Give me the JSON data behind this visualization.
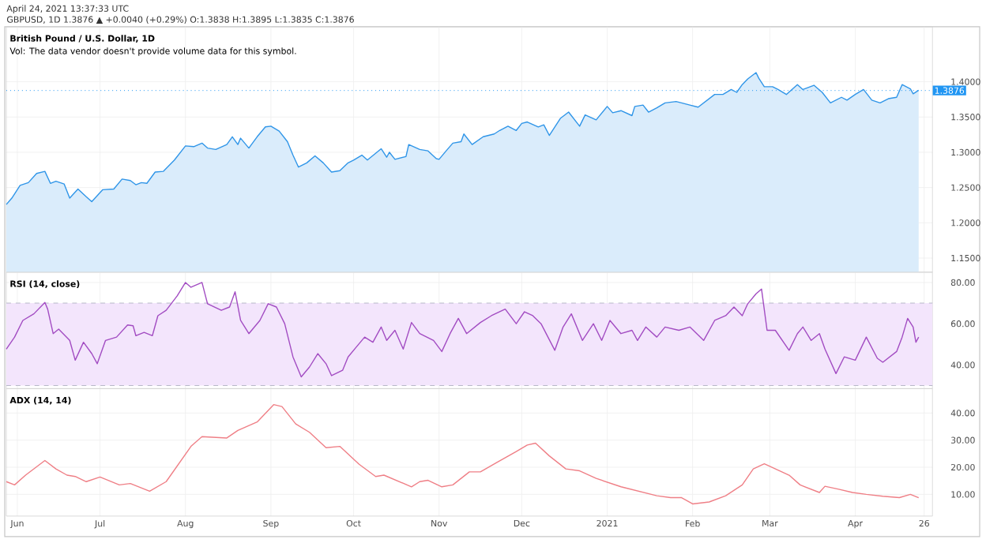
{
  "chart_data": [
    {
      "type": "area",
      "title": "British Pound / U.S. Dollar, 1D",
      "subtitle": "Vol: The data vendor doesn't provide volume data for this symbol.",
      "annotations": [
        "April 24, 2021 13:37:33 UTC",
        "GBPUSD, 1D 1.3876 ▲ +0.0040 (+0.29%) O:1.3838 H:1.3895 L:1.3835 C:1.3876"
      ],
      "x": [
        "2020-05-28",
        "2020-05-30",
        "2020-06-02",
        "2020-06-05",
        "2020-06-08",
        "2020-06-11",
        "2020-06-13",
        "2020-06-15",
        "2020-06-18",
        "2020-06-20",
        "2020-06-23",
        "2020-06-26",
        "2020-06-28",
        "2020-07-02",
        "2020-07-06",
        "2020-07-09",
        "2020-07-12",
        "2020-07-14",
        "2020-07-16",
        "2020-07-18",
        "2020-07-21",
        "2020-07-24",
        "2020-07-28",
        "2020-08-01",
        "2020-08-04",
        "2020-08-07",
        "2020-08-09",
        "2020-08-12",
        "2020-08-16",
        "2020-08-18",
        "2020-08-20",
        "2020-08-21",
        "2020-08-24",
        "2020-08-27",
        "2020-08-30",
        "2020-09-01",
        "2020-09-04",
        "2020-09-07",
        "2020-09-09",
        "2020-09-11",
        "2020-09-14",
        "2020-09-17",
        "2020-09-20",
        "2020-09-23",
        "2020-09-26",
        "2020-09-29",
        "2020-10-01",
        "2020-10-04",
        "2020-10-06",
        "2020-10-11",
        "2020-10-13",
        "2020-10-14",
        "2020-10-16",
        "2020-10-20",
        "2020-10-21",
        "2020-10-25",
        "2020-10-28",
        "2020-10-31",
        "2020-11-01",
        "2020-11-04",
        "2020-11-06",
        "2020-11-09",
        "2020-11-10",
        "2020-11-13",
        "2020-11-17",
        "2020-11-21",
        "2020-11-23",
        "2020-11-26",
        "2020-11-29",
        "2020-12-01",
        "2020-12-03",
        "2020-12-07",
        "2020-12-09",
        "2020-12-11",
        "2020-12-15",
        "2020-12-18",
        "2020-12-22",
        "2020-12-24",
        "2020-12-28",
        "2021-01-01",
        "2021-01-03",
        "2021-01-06",
        "2021-01-10",
        "2021-01-11",
        "2021-01-14",
        "2021-01-16",
        "2021-01-19",
        "2021-01-22",
        "2021-01-26",
        "2021-01-28",
        "2021-01-31",
        "2021-02-03",
        "2021-02-06",
        "2021-02-09",
        "2021-02-12",
        "2021-02-15",
        "2021-02-17",
        "2021-02-19",
        "2021-02-21",
        "2021-02-24",
        "2021-02-25",
        "2021-02-27",
        "2021-03-02",
        "2021-03-04",
        "2021-03-07",
        "2021-03-11",
        "2021-03-13",
        "2021-03-17",
        "2021-03-20",
        "2021-03-23",
        "2021-03-27",
        "2021-03-29",
        "2021-04-01",
        "2021-04-04",
        "2021-04-07",
        "2021-04-10",
        "2021-04-13",
        "2021-04-16",
        "2021-04-18",
        "2021-04-21",
        "2021-04-22",
        "2021-04-24"
      ],
      "values": [
        1.226,
        1.235,
        1.253,
        1.257,
        1.27,
        1.273,
        1.256,
        1.259,
        1.255,
        1.235,
        1.248,
        1.237,
        1.23,
        1.247,
        1.248,
        1.262,
        1.26,
        1.254,
        1.257,
        1.256,
        1.272,
        1.273,
        1.289,
        1.309,
        1.308,
        1.313,
        1.306,
        1.304,
        1.311,
        1.322,
        1.311,
        1.32,
        1.306,
        1.322,
        1.336,
        1.337,
        1.33,
        1.315,
        1.296,
        1.279,
        1.285,
        1.295,
        1.285,
        1.272,
        1.274,
        1.285,
        1.289,
        1.296,
        1.289,
        1.305,
        1.293,
        1.3,
        1.29,
        1.294,
        1.311,
        1.304,
        1.302,
        1.291,
        1.29,
        1.304,
        1.313,
        1.315,
        1.326,
        1.311,
        1.322,
        1.326,
        1.331,
        1.337,
        1.331,
        1.341,
        1.343,
        1.336,
        1.339,
        1.324,
        1.348,
        1.357,
        1.337,
        1.353,
        1.346,
        1.365,
        1.356,
        1.359,
        1.352,
        1.365,
        1.367,
        1.357,
        1.363,
        1.37,
        1.372,
        1.37,
        1.367,
        1.364,
        1.373,
        1.382,
        1.382,
        1.389,
        1.385,
        1.396,
        1.404,
        1.413,
        1.405,
        1.393,
        1.393,
        1.389,
        1.382,
        1.396,
        1.389,
        1.395,
        1.385,
        1.37,
        1.378,
        1.374,
        1.382,
        1.389,
        1.374,
        1.37,
        1.376,
        1.378,
        1.396,
        1.39,
        1.383,
        1.388
      ],
      "color": "#2f95e8",
      "xlim": [
        "2020-05-28",
        "2021-04-29"
      ],
      "ylim": [
        1.13,
        1.478
      ],
      "xticks": [
        {
          "value": "2020-06-01",
          "label": null
        },
        {
          "value": "2020-07-01",
          "label": null
        },
        {
          "value": "2020-08-01",
          "label": null
        },
        {
          "value": "2020-09-01",
          "label": null
        },
        {
          "value": "2020-10-01",
          "label": null
        },
        {
          "value": "2020-11-01",
          "label": null
        },
        {
          "value": "2020-12-01",
          "label": null
        },
        {
          "value": "2021-01-01",
          "label": null
        },
        {
          "value": "2021-02-01",
          "label": null
        },
        {
          "value": "2021-03-01",
          "label": null
        },
        {
          "value": "2021-04-01",
          "label": null
        },
        {
          "value": "2021-04-26",
          "label": null
        }
      ],
      "yticks": [
        {
          "value": 1.15,
          "label": "1.1500"
        },
        {
          "value": 1.2,
          "label": "1.2000"
        },
        {
          "value": 1.25,
          "label": "1.2500"
        },
        {
          "value": 1.3,
          "label": "1.3000"
        },
        {
          "value": 1.35,
          "label": "1.3500"
        },
        {
          "value": 1.4,
          "label": "1.4000"
        }
      ],
      "grid": true,
      "tick_labels": "y",
      "ref_lines": [
        {
          "axis": "y",
          "value": 1.3876,
          "label": "1.3876",
          "color": "#2196f3",
          "line_style": "dotted"
        }
      ]
    },
    {
      "type": "line",
      "title": "RSI (14, close)",
      "x": [
        "2020-05-28",
        "2020-05-31",
        "2020-06-03",
        "2020-06-07",
        "2020-06-11",
        "2020-06-12",
        "2020-06-14",
        "2020-06-16",
        "2020-06-20",
        "2020-06-22",
        "2020-06-25",
        "2020-06-28",
        "2020-06-30",
        "2020-07-03",
        "2020-07-07",
        "2020-07-11",
        "2020-07-13",
        "2020-07-14",
        "2020-07-17",
        "2020-07-20",
        "2020-07-22",
        "2020-07-25",
        "2020-07-29",
        "2020-08-01",
        "2020-08-03",
        "2020-08-07",
        "2020-08-09",
        "2020-08-14",
        "2020-08-17",
        "2020-08-19",
        "2020-08-21",
        "2020-08-24",
        "2020-08-28",
        "2020-08-31",
        "2020-09-03",
        "2020-09-06",
        "2020-09-09",
        "2020-09-12",
        "2020-09-15",
        "2020-09-18",
        "2020-09-21",
        "2020-09-23",
        "2020-09-27",
        "2020-09-29",
        "2020-10-02",
        "2020-10-05",
        "2020-10-08",
        "2020-10-11",
        "2020-10-13",
        "2020-10-16",
        "2020-10-19",
        "2020-10-22",
        "2020-10-25",
        "2020-10-30",
        "2020-11-02",
        "2020-11-05",
        "2020-11-08",
        "2020-11-11",
        "2020-11-16",
        "2020-11-20",
        "2020-11-25",
        "2020-11-29",
        "2020-12-02",
        "2020-12-05",
        "2020-12-08",
        "2020-12-13",
        "2020-12-16",
        "2020-12-19",
        "2020-12-23",
        "2020-12-27",
        "2020-12-30",
        "2021-01-02",
        "2021-01-06",
        "2021-01-10",
        "2021-01-12",
        "2021-01-15",
        "2021-01-19",
        "2021-01-22",
        "2021-01-27",
        "2021-01-31",
        "2021-02-05",
        "2021-02-09",
        "2021-02-13",
        "2021-02-16",
        "2021-02-19",
        "2021-02-21",
        "2021-02-24",
        "2021-02-26",
        "2021-02-28",
        "2021-03-03",
        "2021-03-08",
        "2021-03-11",
        "2021-03-13",
        "2021-03-16",
        "2021-03-19",
        "2021-03-21",
        "2021-03-25",
        "2021-03-28",
        "2021-04-01",
        "2021-04-05",
        "2021-04-09",
        "2021-04-11",
        "2021-04-16",
        "2021-04-18",
        "2021-04-20",
        "2021-04-22",
        "2021-04-23",
        "2021-04-24"
      ],
      "values": [
        47.7,
        53.5,
        61.6,
        64.8,
        70.3,
        67.1,
        55.2,
        57.4,
        51.9,
        42.3,
        51.0,
        45.5,
        40.6,
        51.9,
        53.5,
        59.4,
        59.0,
        54.2,
        55.8,
        54.2,
        63.9,
        66.5,
        73.5,
        80.0,
        77.7,
        80.0,
        69.7,
        66.5,
        68.1,
        75.5,
        61.6,
        55.2,
        61.6,
        69.7,
        68.1,
        60.0,
        43.9,
        34.2,
        39.0,
        45.5,
        40.6,
        34.8,
        37.4,
        43.9,
        48.7,
        53.5,
        51.0,
        58.4,
        51.9,
        56.8,
        47.7,
        60.6,
        55.2,
        51.9,
        46.5,
        55.2,
        62.6,
        55.2,
        60.6,
        63.9,
        67.1,
        60.0,
        65.8,
        63.9,
        60.0,
        47.1,
        58.4,
        64.8,
        51.9,
        60.0,
        51.9,
        61.6,
        55.2,
        56.8,
        51.9,
        58.4,
        53.5,
        58.4,
        56.8,
        58.4,
        51.9,
        61.6,
        63.9,
        68.1,
        63.9,
        69.7,
        74.5,
        76.8,
        56.8,
        56.8,
        47.1,
        55.2,
        58.4,
        51.9,
        55.2,
        47.7,
        35.8,
        43.9,
        42.3,
        53.5,
        43.2,
        41.3,
        46.5,
        53.5,
        62.6,
        58.4,
        51.0,
        53.5
      ],
      "color": "#a24cc2",
      "xlim": [
        "2020-05-28",
        "2021-04-29"
      ],
      "ylim": [
        28.5,
        85
      ],
      "xticks": [
        {
          "value": "2020-06-01",
          "label": null
        },
        {
          "value": "2020-07-01",
          "label": null
        },
        {
          "value": "2020-08-01",
          "label": null
        },
        {
          "value": "2020-09-01",
          "label": null
        },
        {
          "value": "2020-10-01",
          "label": null
        },
        {
          "value": "2020-11-01",
          "label": null
        },
        {
          "value": "2020-12-01",
          "label": null
        },
        {
          "value": "2021-01-01",
          "label": null
        },
        {
          "value": "2021-02-01",
          "label": null
        },
        {
          "value": "2021-03-01",
          "label": null
        },
        {
          "value": "2021-04-01",
          "label": null
        },
        {
          "value": "2021-04-26",
          "label": null
        }
      ],
      "yticks": [
        {
          "value": 40,
          "label": "40.00"
        },
        {
          "value": 60,
          "label": "60.00"
        },
        {
          "value": 80,
          "label": "80.00"
        }
      ],
      "grid": true,
      "tick_labels": "y",
      "bands": [
        {
          "axis": "y",
          "from": 30,
          "to": 70,
          "color": "#f3e5fc"
        }
      ],
      "ref_lines": [
        {
          "axis": "y",
          "value": 70,
          "color": "#b8b8c8",
          "line_style": "dashed"
        },
        {
          "axis": "y",
          "value": 30,
          "color": "#b8b8c8",
          "line_style": "dashed"
        }
      ]
    },
    {
      "type": "line",
      "title": "ADX (14, 14)",
      "x": [
        "2020-05-28",
        "2020-05-31",
        "2020-06-04",
        "2020-06-11",
        "2020-06-15",
        "2020-06-19",
        "2020-06-22",
        "2020-06-26",
        "2020-07-01",
        "2020-07-08",
        "2020-07-12",
        "2020-07-19",
        "2020-07-25",
        "2020-08-03",
        "2020-08-07",
        "2020-08-16",
        "2020-08-20",
        "2020-08-27",
        "2020-09-02",
        "2020-09-05",
        "2020-09-10",
        "2020-09-15",
        "2020-09-21",
        "2020-09-26",
        "2020-10-03",
        "2020-10-09",
        "2020-10-12",
        "2020-10-22",
        "2020-10-25",
        "2020-10-28",
        "2020-11-02",
        "2020-11-06",
        "2020-11-12",
        "2020-11-16",
        "2020-11-22",
        "2020-11-29",
        "2020-12-03",
        "2020-12-06",
        "2020-12-11",
        "2020-12-17",
        "2020-12-22",
        "2020-12-28",
        "2021-01-06",
        "2021-01-19",
        "2021-01-24",
        "2021-01-28",
        "2021-02-01",
        "2021-02-07",
        "2021-02-13",
        "2021-02-19",
        "2021-02-23",
        "2021-02-27",
        "2021-03-08",
        "2021-03-12",
        "2021-03-19",
        "2021-03-21",
        "2021-03-26",
        "2021-03-31",
        "2021-04-05",
        "2021-04-11",
        "2021-04-17",
        "2021-04-21",
        "2021-04-24"
      ],
      "values": [
        14.7,
        13.5,
        17.1,
        22.5,
        19.4,
        17.1,
        16.6,
        14.7,
        16.4,
        13.5,
        14.0,
        11.2,
        14.7,
        27.7,
        31.3,
        30.8,
        33.6,
        36.7,
        43.1,
        42.4,
        36.0,
        32.9,
        27.2,
        27.7,
        21.1,
        16.6,
        17.1,
        12.8,
        14.7,
        15.2,
        12.8,
        13.5,
        18.3,
        18.3,
        21.8,
        25.8,
        28.2,
        28.9,
        24.2,
        19.4,
        18.7,
        15.9,
        12.8,
        9.5,
        8.8,
        8.8,
        6.5,
        7.2,
        9.5,
        13.5,
        19.4,
        21.3,
        17.1,
        13.5,
        10.7,
        13.0,
        11.9,
        10.7,
        10.0,
        9.3,
        8.8,
        10.0,
        8.8
      ],
      "color": "#ef7f86",
      "xlim": [
        "2020-05-28",
        "2021-04-29"
      ],
      "ylim": [
        2,
        49
      ],
      "xticks": [
        {
          "value": "2020-06-01",
          "label": "Jun"
        },
        {
          "value": "2020-07-01",
          "label": "Jul"
        },
        {
          "value": "2020-08-01",
          "label": "Aug"
        },
        {
          "value": "2020-09-01",
          "label": "Sep"
        },
        {
          "value": "2020-10-01",
          "label": "Oct"
        },
        {
          "value": "2020-11-01",
          "label": "Nov"
        },
        {
          "value": "2020-12-01",
          "label": "Dec"
        },
        {
          "value": "2021-01-01",
          "label": "2021"
        },
        {
          "value": "2021-02-01",
          "label": "Feb"
        },
        {
          "value": "2021-03-01",
          "label": "Mar"
        },
        {
          "value": "2021-04-01",
          "label": "Apr"
        },
        {
          "value": "2021-04-26",
          "label": "26"
        }
      ],
      "yticks": [
        {
          "value": 10,
          "label": "10.00"
        },
        {
          "value": 20,
          "label": "20.00"
        },
        {
          "value": 30,
          "label": "30.00"
        },
        {
          "value": 40,
          "label": "40.00"
        }
      ],
      "grid": true
    }
  ]
}
